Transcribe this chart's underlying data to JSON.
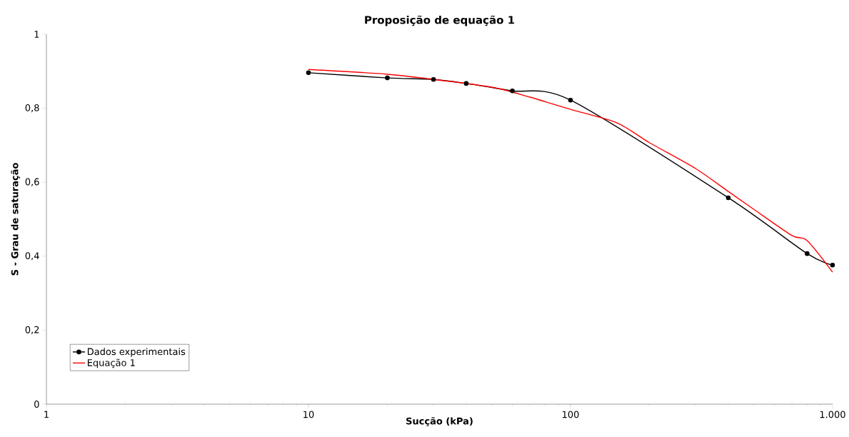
{
  "chart_data": {
    "type": "line",
    "title": "Proposição de equação 1",
    "xlabel": "Sucção (kPa)",
    "ylabel": "S - Grau de saturação",
    "log": "x",
    "grid": false,
    "legend": "bottom left",
    "xlim": [
      1,
      1000
    ],
    "xticks": [
      1,
      10,
      100,
      {
        "value": 1000,
        "label": "1.000"
      }
    ],
    "ylim": [
      0,
      1
    ],
    "yticks": [
      0,
      {
        "value": 0.2,
        "label": "0,2"
      },
      {
        "value": 0.4,
        "label": "0,4"
      },
      {
        "value": 0.6,
        "label": "0,6"
      },
      {
        "value": 0.8,
        "label": "0,8"
      },
      1
    ],
    "series": [
      {
        "name": "Dados experimentais",
        "color": "#000000",
        "marker": "circle",
        "x": [
          10,
          20,
          30,
          40,
          60,
          100,
          400,
          800,
          1000
        ],
        "values": [
          0.896,
          0.882,
          0.878,
          0.867,
          0.847,
          0.822,
          0.558,
          0.407,
          0.376
        ]
      },
      {
        "name": "Equação 1",
        "color": "#ff0000",
        "marker": "none",
        "x": [
          10,
          20,
          30,
          50,
          70,
          100,
          150,
          200,
          300,
          400,
          500,
          700,
          800,
          1000
        ],
        "values": [
          0.905,
          0.892,
          0.878,
          0.857,
          0.83,
          0.797,
          0.761,
          0.707,
          0.637,
          0.575,
          0.527,
          0.456,
          0.442,
          0.357
        ]
      }
    ]
  }
}
